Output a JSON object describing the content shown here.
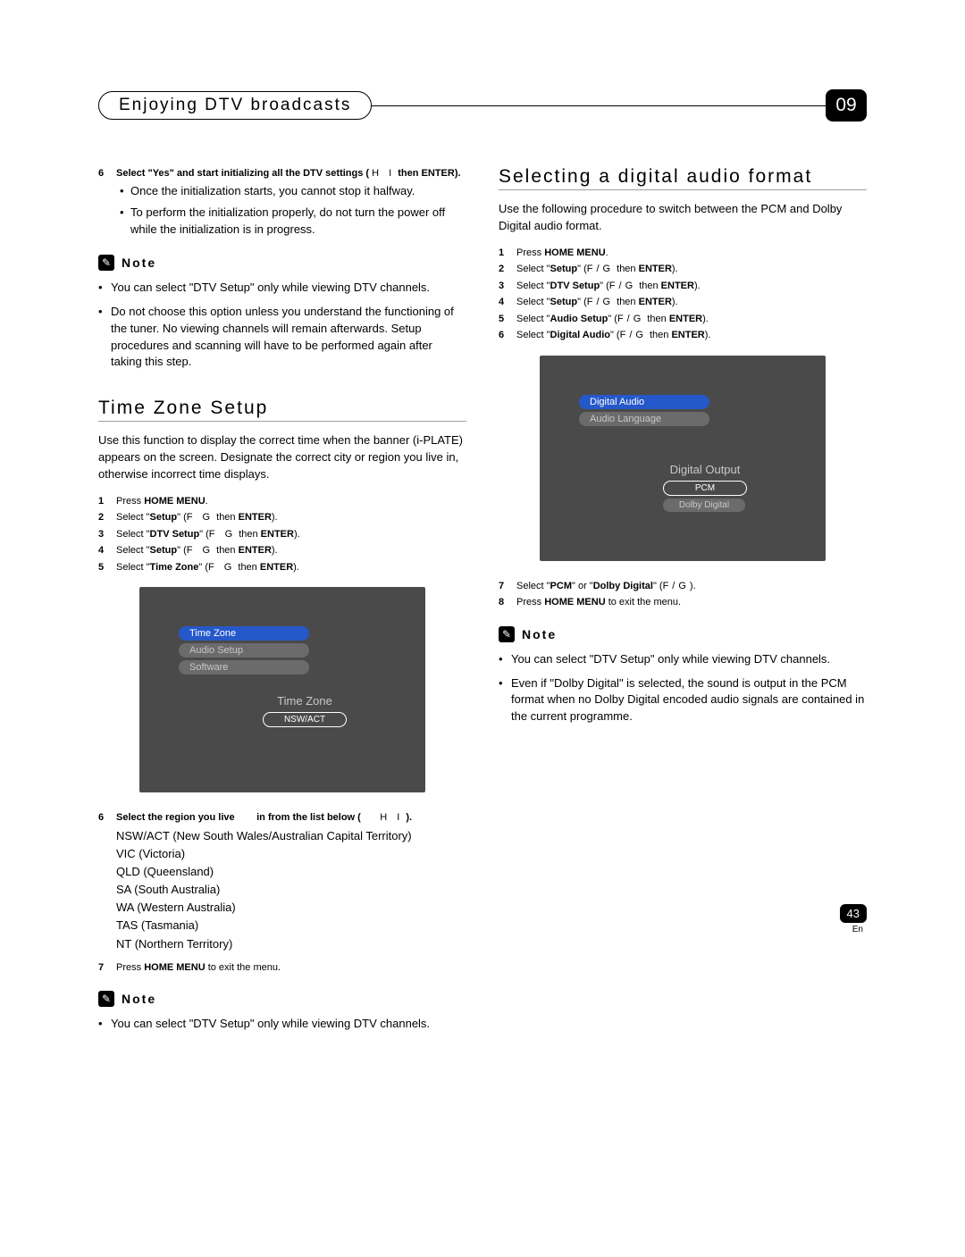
{
  "header": {
    "chapter_title": "Enjoying DTV broadcasts",
    "chapter_number": "09"
  },
  "left": {
    "step6": {
      "num": "6",
      "text_a": "Select \"",
      "text_b": "Yes",
      "text_c": "\" and start initializing all the DTV settings (",
      "arrows": "H I",
      "text_d": " then ",
      "enter": "ENTER",
      "text_e": ")."
    },
    "sub1": "Once the initialization starts, you cannot stop it halfway.",
    "sub2": "To perform the initialization properly, do not turn the power off while the initialization is in progress.",
    "note_label": "Note",
    "note1": "You can select \"DTV Setup\" only while viewing DTV channels.",
    "note2": "Do not choose this option unless you understand the functioning of the tuner. No viewing channels will remain afterwards. Setup procedures and scanning will have to be performed again after taking this step.",
    "tz_heading": "Time Zone Setup",
    "tz_intro": "Use this function to display the correct time when the banner (i-PLATE) appears on the screen. Designate the correct city or region you live in, otherwise incorrect time displays.",
    "steps": [
      {
        "n": "1",
        "t": "Press <b>HOME MENU</b>."
      },
      {
        "n": "2",
        "t": "Select \"<b>Setup</b>\" (<span class='arrow-gap'>F G</span> then <b>ENTER</b>)."
      },
      {
        "n": "3",
        "t": "Select \"<b>DTV Setup</b>\" (<span class='arrow-gap'>F G</span> then <b>ENTER</b>)."
      },
      {
        "n": "4",
        "t": "Select \"<b>Setup</b>\" (<span class='arrow-gap'>F G</span> then <b>ENTER</b>)."
      },
      {
        "n": "5",
        "t": "Select \"<b>Time Zone</b>\" (<span class='arrow-gap'>F G</span> then <b>ENTER</b>)."
      }
    ],
    "menu": {
      "items": [
        "Time Zone",
        "Audio Setup",
        "Software"
      ],
      "sub_title": "Time Zone",
      "sub_value": "NSW/ACT"
    },
    "step6b": {
      "n": "6",
      "t_a": "Select the region you live",
      "t_b": "in from the list below (",
      "arrows": "H I",
      "t_c": ")."
    },
    "regions": [
      "NSW/ACT (New South Wales/Australian Capital Territory)",
      "VIC (Victoria)",
      "QLD (Queensland)",
      "SA (South Australia)",
      "WA (Western Australia)",
      "TAS (Tasmania)",
      "NT (Northern Territory)"
    ],
    "step7": {
      "n": "7",
      "t": "Press <b>HOME MENU</b> to exit the menu."
    },
    "note3": "You can select \"DTV Setup\" only while viewing DTV channels."
  },
  "right": {
    "heading": "Selecting a digital audio format",
    "intro": "Use the following procedure to switch between the PCM and Dolby Digital audio format.",
    "steps": [
      {
        "n": "1",
        "t": "Press <b>HOME MENU</b>."
      },
      {
        "n": "2",
        "t": "Select \"<b>Setup</b>\" (<span class='arrow-gap'>F/G</span> then <b>ENTER</b>)."
      },
      {
        "n": "3",
        "t": "Select \"<b>DTV Setup</b>\" (<span class='arrow-gap'>F/G</span> then <b>ENTER</b>)."
      },
      {
        "n": "4",
        "t": "Select \"<b>Setup</b>\" (<span class='arrow-gap'>F/G</span> then <b>ENTER</b>)."
      },
      {
        "n": "5",
        "t": "Select \"<b>Audio Setup</b>\" (<span class='arrow-gap'>F/G</span> then <b>ENTER</b>)."
      },
      {
        "n": "6",
        "t": "Select \"<b>Digital Audio</b>\" (<span class='arrow-gap'>F/G</span> then <b>ENTER</b>)."
      }
    ],
    "menu": {
      "items": [
        "Digital Audio",
        "Audio Language"
      ],
      "sub_title": "Digital Output",
      "opts": [
        "PCM",
        "Dolby Digital"
      ]
    },
    "step7": {
      "n": "7",
      "t": "Select \"<b>PCM</b>\" or \"<b>Dolby Digital</b>\" (<span class='arrow-gap'>F/G</span>)."
    },
    "step8": {
      "n": "8",
      "t": "Press <b>HOME MENU</b> to exit the menu."
    },
    "note_label": "Note",
    "note1": "You can select \"DTV Setup\" only while viewing DTV channels.",
    "note2": "Even if \"Dolby Digital\" is selected, the sound is output in the PCM format when no Dolby Digital encoded audio signals are contained in the current programme."
  },
  "footer": {
    "page": "43",
    "lang": "En"
  }
}
